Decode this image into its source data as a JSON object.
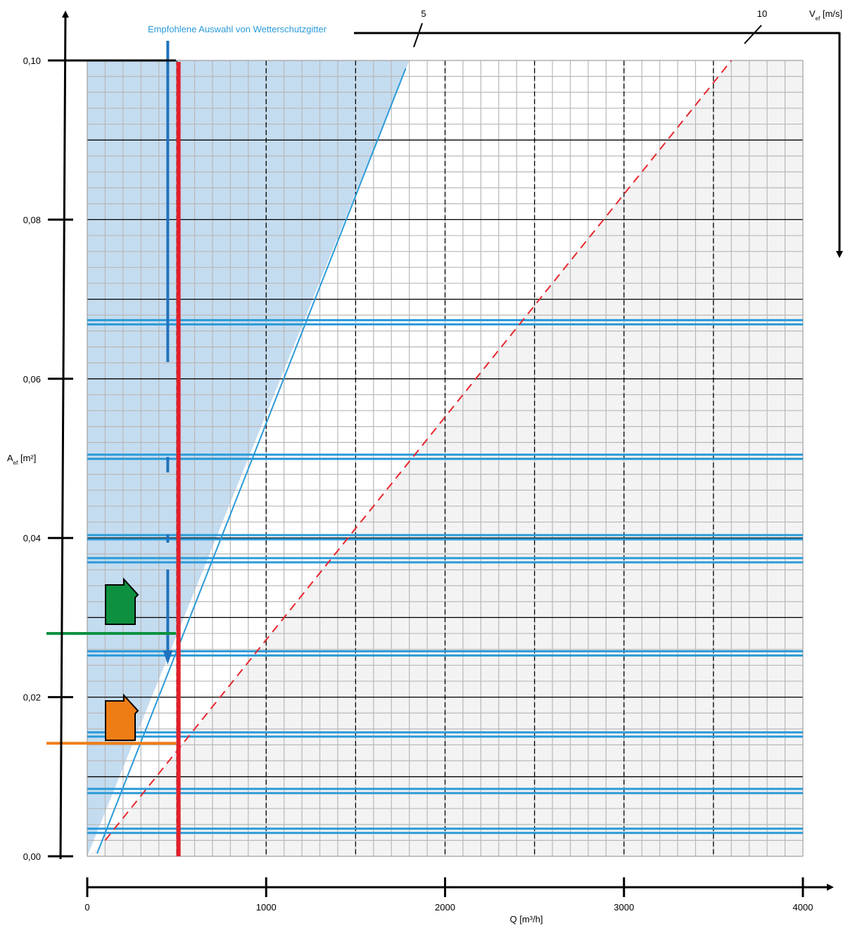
{
  "chart_data": {
    "type": "line",
    "title": "",
    "xlabel": "Q [m³/h]",
    "ylabel": "A_ef [m²]",
    "ylabel_main": "A",
    "ylabel_sub": "ef",
    "ylabel_unit": " [m²]",
    "top_axis_label_main": "V",
    "top_axis_label_sub": "ef",
    "top_axis_label_unit": " [m/s]",
    "top_axis_ticks": [
      "5",
      "10"
    ],
    "xlim": [
      0,
      4000
    ],
    "ylim": [
      0,
      0.1
    ],
    "x_tick_labels": [
      "0",
      "1000",
      "2000",
      "3000",
      "4000"
    ],
    "y_tick_labels": [
      "0,00",
      "0,02",
      "0,04",
      "0,06",
      "0,08",
      "0,10"
    ],
    "grid": true,
    "recommended_label": "Empfohlene Auswahl von Wetterschutzgitter",
    "colors": {
      "recommended_fill": "#c4dcf0",
      "recommended_line": "#2a9ad8",
      "max_velocity_line": "#ee1c25",
      "selected_q_line": "#e21f2a",
      "grille_lines": "#2a9ad8",
      "green_marker": "#0d9140",
      "orange_marker": "#ef7d16",
      "light_region": "#f3f3f3"
    },
    "recommended_boundary": {
      "name": "",
      "x": [
        0,
        1800
      ],
      "y": [
        0,
        0.1
      ]
    },
    "max_velocity_boundary": {
      "name": "",
      "x": [
        100,
        3600
      ],
      "y": [
        0.002,
        0.1
      ]
    },
    "selected_flow_q": 510,
    "grille_effective_areas": [
      0.0032,
      0.0082,
      0.0153,
      0.0255,
      0.0372,
      0.0401,
      0.0502,
      0.0671
    ],
    "green_line_area": 0.028,
    "orange_line_area": 0.0142,
    "blue_arrow_q": 450
  }
}
